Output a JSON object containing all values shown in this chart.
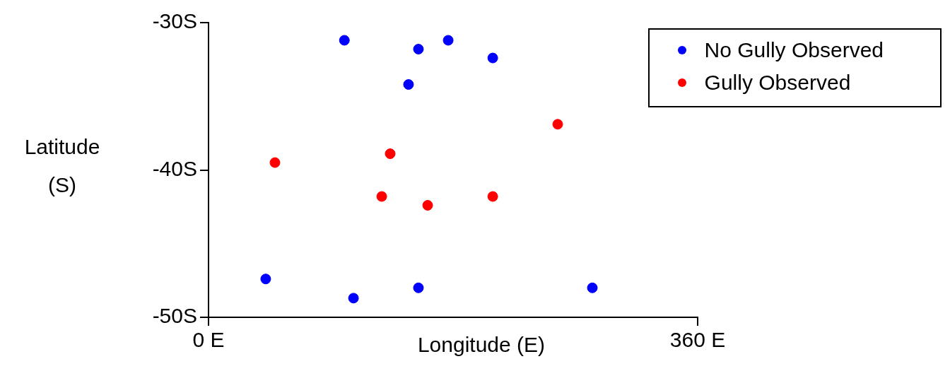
{
  "chart_data": {
    "type": "scatter",
    "xlabel": "Longitude (E)",
    "ylabel": "Latitude (S)",
    "xlim": [
      0,
      360
    ],
    "xticks": [
      {
        "value": 0,
        "label": "0 E"
      },
      {
        "value": 360,
        "label": "360 E"
      }
    ],
    "ylim": [
      -50,
      -30
    ],
    "yticks": [
      {
        "value": -30,
        "label": "-30S"
      },
      {
        "value": -40,
        "label": "-40S"
      },
      {
        "value": -50,
        "label": "-50S"
      }
    ],
    "grid": false,
    "legend": "top right",
    "marker": "circle",
    "series": [
      {
        "name": "No Gully Observed",
        "color": "#0000ff",
        "x": [
          100,
          154.5,
          176.4,
          209.2,
          147.2,
          42.1,
          106.7,
          154.5,
          282.5
        ],
        "values": [
          -31.2,
          -31.8,
          -31.2,
          -32.4,
          -34.2,
          -47.4,
          -48.7,
          -48,
          -48
        ]
      },
      {
        "name": "Gully Observed",
        "color": "#ff0000",
        "x": [
          257,
          48.9,
          133.7,
          127.5,
          161.3,
          209.2
        ],
        "values": [
          -36.9,
          -39.5,
          -38.9,
          -41.8,
          -42.4,
          -41.8
        ]
      }
    ]
  }
}
